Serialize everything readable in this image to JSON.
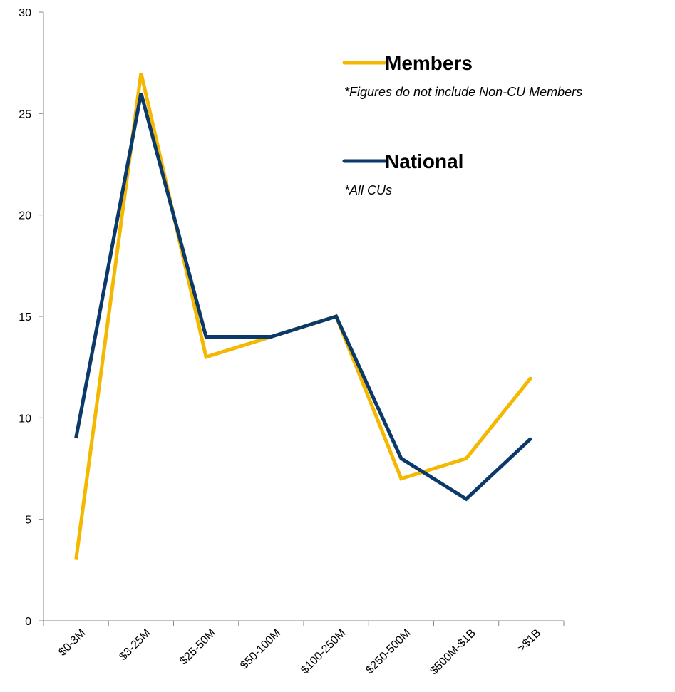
{
  "chart_data": {
    "type": "line",
    "title": "",
    "xlabel": "",
    "ylabel": "",
    "categories": [
      "$0-3M",
      "$3-25M",
      "$25-50M",
      "$50-100M",
      "$100-250M",
      "$250-500M",
      "$500M-$1B",
      ">$1B"
    ],
    "ylim": [
      0,
      30
    ],
    "yticks": [
      "0",
      "5",
      "10",
      "15",
      "20",
      "25",
      "30"
    ],
    "grid": false,
    "legend_position": "top-right",
    "series": [
      {
        "name": "Members",
        "note": "*Figures do not include Non-CU Members",
        "color": "#F5B800",
        "values": [
          3,
          27,
          13,
          14,
          15,
          7,
          8,
          12
        ]
      },
      {
        "name": "National",
        "note": "*All CUs",
        "color": "#0B3A6A",
        "values": [
          9,
          26,
          14,
          14,
          15,
          8,
          6,
          9
        ]
      }
    ]
  }
}
